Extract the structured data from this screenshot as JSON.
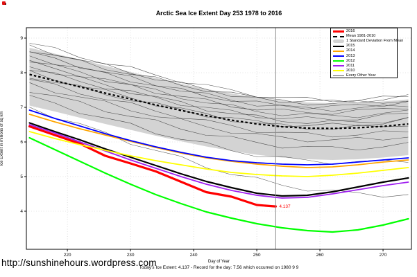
{
  "title": "Arctic Sea Ice Extent Day 253 1978 to 2016",
  "footer": {
    "url": "http://sunshinehours.wordpress.com",
    "caption": "Today's Ice Extent: 4.137  - Record for the day: 7.56 which occurred on 1980 9 9"
  },
  "legend": {
    "items": [
      {
        "label": "2016",
        "color": "#FF0000",
        "swatch": "thick"
      },
      {
        "label": "Mean 1981-2010",
        "color": "#000000",
        "swatch": "dashed"
      },
      {
        "label": "1 Standard Deviation From Mean",
        "color": "#D3D3D3",
        "swatch": "band"
      },
      {
        "label": "2015",
        "color": "#000000",
        "swatch": "line"
      },
      {
        "label": "2014",
        "color": "#FFA500",
        "swatch": "line"
      },
      {
        "label": "2013",
        "color": "#0000FF",
        "swatch": "line"
      },
      {
        "label": "2012",
        "color": "#00FF00",
        "swatch": "line"
      },
      {
        "label": "2011",
        "color": "#A020F0",
        "swatch": "line"
      },
      {
        "label": "2010",
        "color": "#FFFF00",
        "swatch": "line"
      },
      {
        "label": "Every Other Year",
        "color": "#555555",
        "swatch": "thin"
      }
    ]
  },
  "chart_data": {
    "type": "line",
    "title": "Arctic Sea Ice Extent Day 253 1978 to 2016",
    "xlabel": "Day of Year",
    "ylabel": "Ice Extent in millions of sq km",
    "xlim": [
      213.5,
      274.5
    ],
    "ylim": [
      2.9,
      9.3
    ],
    "xticks": [
      220,
      230,
      240,
      250,
      260,
      270
    ],
    "yticks": [
      4,
      5,
      6,
      7,
      8,
      9
    ],
    "grid": "dotted-lightgray",
    "legend_position": "top-right",
    "marker_day": 253,
    "marker_color": "#8a8a8a",
    "annotation": {
      "text": "4.137",
      "day": 253,
      "value": 4.137,
      "color": "#FF0000"
    },
    "x": [
      214,
      218,
      222,
      226,
      230,
      234,
      238,
      242,
      246,
      250,
      254,
      258,
      262,
      266,
      270,
      274
    ],
    "band": {
      "name": "1 Standard Deviation From Mean",
      "color": "#D3D3D3",
      "top": [
        8.72,
        8.55,
        8.38,
        8.2,
        8.02,
        7.85,
        7.68,
        7.53,
        7.4,
        7.28,
        7.2,
        7.14,
        7.12,
        7.13,
        7.17,
        7.23
      ],
      "bottom": [
        7.05,
        6.88,
        6.7,
        6.52,
        6.35,
        6.18,
        6.02,
        5.87,
        5.74,
        5.63,
        5.55,
        5.5,
        5.48,
        5.5,
        5.55,
        5.62
      ]
    },
    "mean": {
      "name": "Mean 1981-2010",
      "color": "#000000",
      "style": "dashed",
      "values": [
        7.95,
        7.77,
        7.59,
        7.41,
        7.24,
        7.07,
        6.91,
        6.76,
        6.63,
        6.52,
        6.44,
        6.4,
        6.39,
        6.41,
        6.45,
        6.52
      ]
    },
    "series": [
      {
        "name": "2016",
        "color": "#FF0000",
        "width": 3.2,
        "x": [
          214,
          218,
          222,
          226,
          230,
          234,
          238,
          242,
          246,
          250,
          253
        ],
        "values": [
          6.45,
          6.2,
          5.95,
          5.6,
          5.38,
          5.15,
          4.85,
          4.55,
          4.42,
          4.18,
          4.137
        ]
      },
      {
        "name": "2015",
        "color": "#000000",
        "width": 2.2,
        "values": [
          6.55,
          6.3,
          6.06,
          5.8,
          5.56,
          5.32,
          5.08,
          4.86,
          4.68,
          4.52,
          4.44,
          4.46,
          4.56,
          4.7,
          4.84,
          4.96
        ]
      },
      {
        "name": "2014",
        "color": "#FFA500",
        "width": 1.8,
        "values": [
          6.8,
          6.58,
          6.38,
          6.2,
          6.02,
          5.84,
          5.68,
          5.54,
          5.44,
          5.36,
          5.3,
          5.26,
          5.28,
          5.34,
          5.42,
          5.48
        ]
      },
      {
        "name": "2013",
        "color": "#0000FF",
        "width": 1.8,
        "values": [
          6.92,
          6.68,
          6.46,
          6.24,
          6.04,
          5.86,
          5.7,
          5.56,
          5.46,
          5.4,
          5.36,
          5.34,
          5.36,
          5.42,
          5.48,
          5.54
        ]
      },
      {
        "name": "2012",
        "color": "#00FF00",
        "width": 2.2,
        "values": [
          6.12,
          5.78,
          5.44,
          5.1,
          4.78,
          4.48,
          4.22,
          3.98,
          3.8,
          3.64,
          3.52,
          3.44,
          3.4,
          3.46,
          3.6,
          3.78
        ]
      },
      {
        "name": "2011",
        "color": "#A020F0",
        "width": 1.8,
        "values": [
          6.5,
          6.26,
          6.0,
          5.74,
          5.48,
          5.24,
          5.0,
          4.78,
          4.6,
          4.46,
          4.38,
          4.4,
          4.5,
          4.62,
          4.74,
          4.84
        ]
      },
      {
        "name": "2010",
        "color": "#FFFF00",
        "width": 1.8,
        "values": [
          6.3,
          6.1,
          5.92,
          5.76,
          5.6,
          5.46,
          5.34,
          5.22,
          5.12,
          5.06,
          5.02,
          5.0,
          5.04,
          5.1,
          5.18,
          5.26
        ]
      }
    ],
    "background_years": {
      "name": "Every Other Year",
      "color": "#303030",
      "width": 0.55,
      "offsets": [
        [
          0.9,
          0.8
        ],
        [
          0.8,
          0.7
        ],
        [
          0.72,
          0.78
        ],
        [
          0.62,
          0.55
        ],
        [
          0.52,
          0.65
        ],
        [
          0.42,
          0.35
        ],
        [
          0.34,
          0.5
        ],
        [
          0.25,
          0.15
        ],
        [
          0.15,
          0.3
        ],
        [
          0.05,
          0.0
        ],
        [
          -0.05,
          0.12
        ],
        [
          -0.15,
          -0.2
        ],
        [
          -0.28,
          -0.35
        ],
        [
          -0.45,
          -0.6
        ],
        [
          -0.65,
          -1.05
        ],
        [
          -0.95,
          -2.05
        ]
      ]
    }
  }
}
